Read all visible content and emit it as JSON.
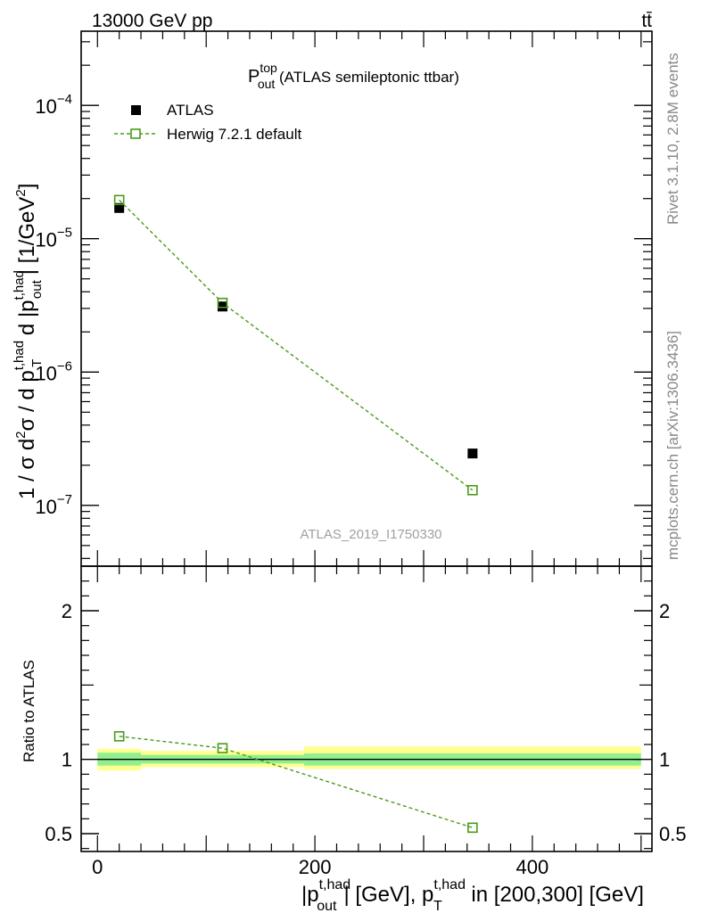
{
  "header": {
    "left": "13000 GeV pp",
    "right": "tt̄"
  },
  "side": {
    "rivet": "Rivet 3.1.10,  2.8M events",
    "mcplots": "mcplots.cern.ch [arXiv:1306.3436]"
  },
  "chart_data": [
    {
      "type": "scatter",
      "panel": "main",
      "title_main": "P",
      "title_sup": "top",
      "title_sub": "out",
      "title_rest": " (ATLAS semileptonic ttbar)",
      "watermark": "ATLAS_2019_I1750330",
      "ylabel": "1 / σ d²σ / d p_T^{t,had} d |p_out^{t,had}| [1/GeV²]",
      "ylabel_parts": {
        "a": "1 / σ d",
        "a_sup": "2",
        "b": "σ / d p",
        "b_sup": "t,had",
        "b_sub": "T",
        "c": " d |p",
        "c_sup": "t,had",
        "c_sub": "out",
        "d": "| [1/GeV",
        "d_sup": "2",
        "e": "]"
      },
      "yscale": "log",
      "ylim": [
        3.5e-08,
        0.00036
      ],
      "xlim": [
        -15,
        510
      ],
      "yticks": [
        {
          "value": 1e-07,
          "base": "10",
          "exp": "−7"
        },
        {
          "value": 1e-06,
          "base": "10",
          "exp": "−6"
        },
        {
          "value": 1e-05,
          "base": "10",
          "exp": "−5"
        },
        {
          "value": 0.0001,
          "base": "10",
          "exp": "−4"
        }
      ],
      "legend": {
        "position": "top-left",
        "entries": [
          {
            "label": "ATLAS",
            "marker": "filled-square"
          },
          {
            "label": "Herwig 7.2.1 default",
            "marker": "open-square-dashed"
          }
        ]
      },
      "series": [
        {
          "name": "ATLAS",
          "x": [
            20,
            115,
            345
          ],
          "y": [
            1.7e-05,
            3.1e-06,
            2.45e-07
          ],
          "color": "#000000"
        },
        {
          "name": "Herwig 7.2.1 default",
          "x": [
            20,
            115,
            345
          ],
          "y": [
            1.95e-05,
            3.3e-06,
            1.3e-07
          ],
          "color": "#4a9a1a"
        }
      ]
    },
    {
      "type": "line",
      "panel": "ratio",
      "ylabel": "Ratio to ATLAS",
      "xlabel_parts": {
        "a": "|p",
        "a_sup": "t,had",
        "a_sub": "out",
        "b": "| [GeV], p",
        "b_sup": "t,had",
        "b_sub": "T",
        "c": " in [200,300] [GeV]"
      },
      "ylim": [
        0.38,
        2.3
      ],
      "xlim": [
        -15,
        510
      ],
      "xticks": [
        {
          "value": 0,
          "label": "0"
        },
        {
          "value": 200,
          "label": "200"
        },
        {
          "value": 400,
          "label": "400"
        }
      ],
      "yticks": [
        {
          "value": 0.5,
          "label": "0.5"
        },
        {
          "value": 1,
          "label": "1"
        },
        {
          "value": 2,
          "label": "2"
        }
      ],
      "bands": [
        {
          "x0": 0,
          "x1": 40,
          "stat_lo": 0.958,
          "stat_hi": 1.045,
          "tot_lo": 0.925,
          "tot_hi": 1.072
        },
        {
          "x0": 40,
          "x1": 190,
          "stat_lo": 0.972,
          "stat_hi": 1.03,
          "tot_lo": 0.948,
          "tot_hi": 1.057
        },
        {
          "x0": 190,
          "x1": 500,
          "stat_lo": 0.958,
          "stat_hi": 1.04,
          "tot_lo": 0.935,
          "tot_hi": 1.087
        }
      ],
      "series": [
        {
          "name": "Herwig 7.2.1 default",
          "x": [
            20,
            115,
            345
          ],
          "y": [
            1.155,
            1.075,
            0.54
          ],
          "color": "#4a9a1a"
        }
      ]
    }
  ],
  "colors": {
    "mc": "#4a9a1a",
    "data": "#000000",
    "band_stat": "#90f090",
    "band_total": "#ffff90",
    "side_text": "#888888"
  }
}
